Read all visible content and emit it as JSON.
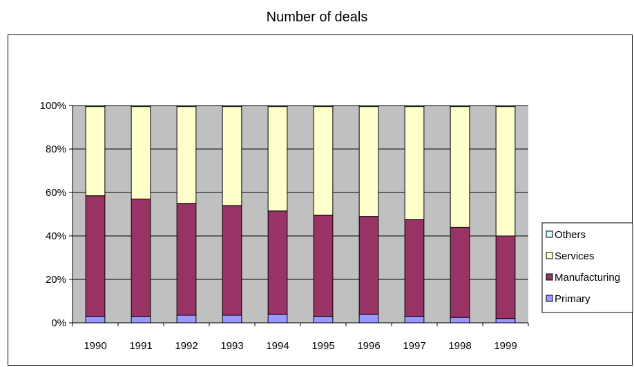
{
  "chart_data": {
    "type": "bar",
    "stacked": true,
    "normalized": true,
    "title": "Number of deals",
    "categories": [
      "1990",
      "1991",
      "1992",
      "1993",
      "1994",
      "1995",
      "1996",
      "1997",
      "1998",
      "1999"
    ],
    "series": [
      {
        "name": "Primary",
        "color": "#9999ff",
        "values": [
          3,
          3,
          3.5,
          3.5,
          4,
          3,
          4,
          3,
          2.5,
          2
        ]
      },
      {
        "name": "Manufacturing",
        "color": "#993366",
        "values": [
          55.5,
          54,
          51.5,
          50.5,
          47.5,
          46.5,
          45,
          44.5,
          41.5,
          38
        ]
      },
      {
        "name": "Services",
        "color": "#ffffcc",
        "values": [
          41,
          42.5,
          44.5,
          45.5,
          48,
          50,
          50.5,
          52,
          55.5,
          59.5
        ]
      },
      {
        "name": "Others",
        "color": "#ccffff",
        "values": [
          0.5,
          0.5,
          0.5,
          0.5,
          0.5,
          0.5,
          0.5,
          0.5,
          0.5,
          0.5
        ]
      }
    ],
    "y_ticks": [
      "0%",
      "20%",
      "40%",
      "60%",
      "80%",
      "100%"
    ],
    "ylim": [
      0,
      100
    ],
    "grid": true,
    "plot_background": "#c0c0c0",
    "legend_position": "right",
    "legend_order": [
      "Others",
      "Services",
      "Manufacturing",
      "Primary"
    ]
  }
}
